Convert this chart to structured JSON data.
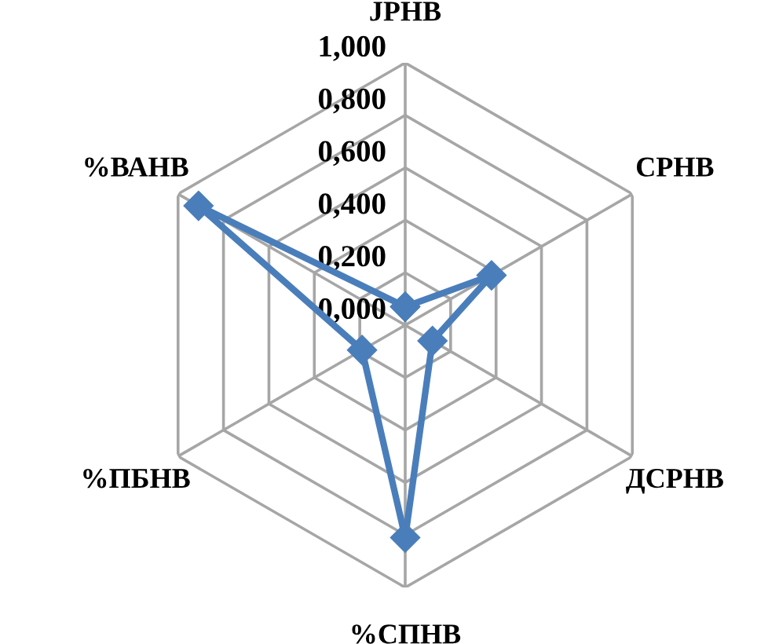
{
  "chart_data": {
    "type": "radar",
    "categories": [
      "ЈРНВ",
      "СРНВ",
      "ДСРНВ",
      "%СПНВ",
      "%ПБНВ",
      "%ВАНВ"
    ],
    "series": [
      {
        "color": "#4a7ebb",
        "values": [
          0.07,
          0.38,
          0.12,
          0.81,
          0.19,
          0.91
        ]
      }
    ],
    "ylim": [
      0,
      1
    ],
    "yticks": [
      {
        "value": 0,
        "label": "0,000"
      },
      {
        "value": 0.2,
        "label": "0,200"
      },
      {
        "value": 0.4,
        "label": "0,400"
      },
      {
        "value": 0.6,
        "label": "0,600"
      },
      {
        "value": 0.8,
        "label": "0,800"
      },
      {
        "value": 1,
        "label": "1,000"
      }
    ],
    "grid": true,
    "marker": "diamond",
    "line_style": "solid"
  }
}
